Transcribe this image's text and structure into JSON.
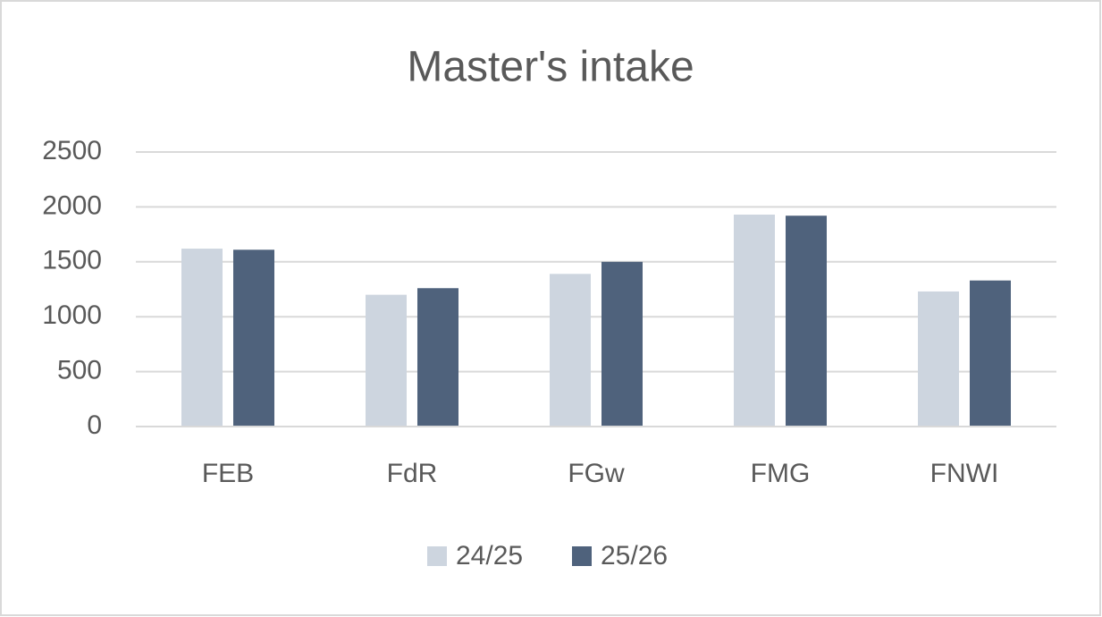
{
  "chart_data": {
    "type": "bar",
    "title": "Master's intake",
    "categories": [
      "FEB",
      "FdR",
      "FGw",
      "FMG",
      "FNWI"
    ],
    "series": [
      {
        "name": "24/25",
        "color": "#cdd5df",
        "values": [
          1620,
          1200,
          1390,
          1930,
          1230
        ]
      },
      {
        "name": "25/26",
        "color": "#4f627c",
        "values": [
          1610,
          1260,
          1500,
          1920,
          1330
        ]
      }
    ],
    "ylim": [
      0,
      2500
    ],
    "yticks": [
      0,
      500,
      1000,
      1500,
      2000,
      2500
    ],
    "grid": true,
    "legend": "bottom"
  }
}
